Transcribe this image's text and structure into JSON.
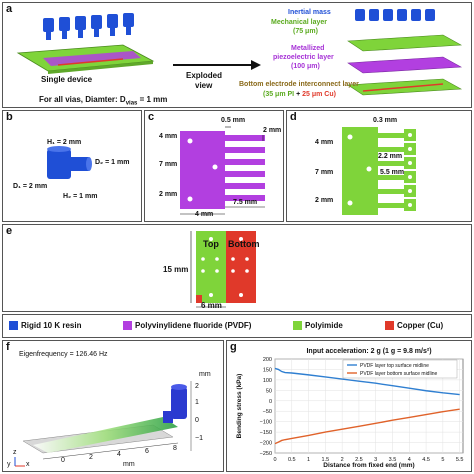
{
  "colors": {
    "resin": "#1f4fd6",
    "pvdf": "#b23fe0",
    "polyimide": "#7fd43a",
    "copper": "#e0392a",
    "blue_line": "#2f7fd1",
    "orange_line": "#e0622a"
  },
  "panel_a": {
    "label": "a",
    "inertial_mass": "Inertial mass",
    "mechanical_layer": "Mechanical layer",
    "mechanical_thickness": "(75 μm)",
    "metallized_layer": "Metallized",
    "piezo_layer": "piezoelectric layer",
    "piezo_thickness": "(100 μm)",
    "bottom_layer": "Bottom electrode interconnect layer",
    "bottom_thickness_pi": "(35 μm PI",
    "bottom_thickness_plus": " + ",
    "bottom_thickness_cu": "25 μm Cu)",
    "single_device": "Single device",
    "exploded": "Exploded",
    "view": "view",
    "vias_note": "For all vias, Diamter: D",
    "vias_sub": "vias",
    "vias_value": " = 1 mm"
  },
  "panel_b": {
    "label": "b",
    "h1": "H₁ = 2 mm",
    "d2": "D₂ = 1 mm",
    "d1": "D₁ = 2 mm",
    "h2": "H₂ = 1 mm"
  },
  "panel_c": {
    "label": "c",
    "dim_05": "0.5 mm",
    "dim_2top": "2 mm",
    "dim_4left": "4 mm",
    "dim_7": "7 mm",
    "dim_2bottom": "2 mm",
    "dim_75": "7.5 mm",
    "dim_4bottom": "4 mm"
  },
  "panel_d": {
    "label": "d",
    "dim_03": "0.3 mm",
    "dim_4": "4 mm",
    "dim_22": "2.2 mm",
    "dim_7": "7 mm",
    "dim_55": "5.5 mm",
    "dim_2": "2 mm"
  },
  "panel_e": {
    "label": "e",
    "top": "Top",
    "bottom": "Bottom",
    "dim_15": "15 mm",
    "dim_6": "6 mm"
  },
  "legend": [
    {
      "label": "Rigid 10 K resin",
      "color": "#1f4fd6"
    },
    {
      "label": "Polyvinylidene fluoride (PVDF)",
      "color": "#b23fe0"
    },
    {
      "label": "Polyimide",
      "color": "#7fd43a"
    },
    {
      "label": "Copper (Cu)",
      "color": "#e0392a"
    }
  ],
  "panel_f": {
    "label": "f",
    "eigenfrequency": "Eigenfrequency = 126.46 Hz",
    "unit": "mm",
    "z_ticks": [
      "2",
      "1",
      "0",
      "−1"
    ],
    "x_ticks": [
      "0",
      "2",
      "4",
      "6",
      "8"
    ],
    "x_unit": "mm",
    "axis_y": "y",
    "axis_z": "z",
    "axis_x": "x"
  },
  "chart_data": {
    "type": "line",
    "title": "Input acceleration: 2 g (1 g = 9.8 m/s²)",
    "xlabel": "Distance from fixed end (mm)",
    "ylabel": "Bending stress (kPa)",
    "xlim": [
      0,
      5.6
    ],
    "ylim": [
      -250,
      200
    ],
    "x_ticks": [
      "0",
      "0.5",
      "1",
      "1.5",
      "2",
      "2.5",
      "3",
      "3.5",
      "4",
      "4.5",
      "5",
      "5.5"
    ],
    "y_ticks": [
      "200",
      "150",
      "100",
      "50",
      "0",
      "−50",
      "−100",
      "−150",
      "−200",
      "−250"
    ],
    "grid": true,
    "legend_position": "top-right",
    "series": [
      {
        "name": "PVDF layer top surface midline",
        "color": "#2f7fd1",
        "x": [
          0,
          0.1,
          0.2,
          0.3,
          0.5,
          1.0,
          1.5,
          2.0,
          2.5,
          3.0,
          3.5,
          4.0,
          4.5,
          5.0,
          5.5
        ],
        "y": [
          155,
          150,
          140,
          135,
          133,
          124,
          114,
          104,
          94,
          84,
          72,
          60,
          48,
          38,
          30
        ]
      },
      {
        "name": "PVDF layer bottom surface midline",
        "color": "#e0622a",
        "x": [
          0,
          0.1,
          0.2,
          0.3,
          0.5,
          1.0,
          1.5,
          2.0,
          2.5,
          3.0,
          3.5,
          4.0,
          4.5,
          5.0,
          5.5
        ],
        "y": [
          -205,
          -198,
          -190,
          -186,
          -180,
          -166,
          -150,
          -136,
          -122,
          -108,
          -93,
          -80,
          -66,
          -52,
          -40
        ]
      }
    ]
  }
}
